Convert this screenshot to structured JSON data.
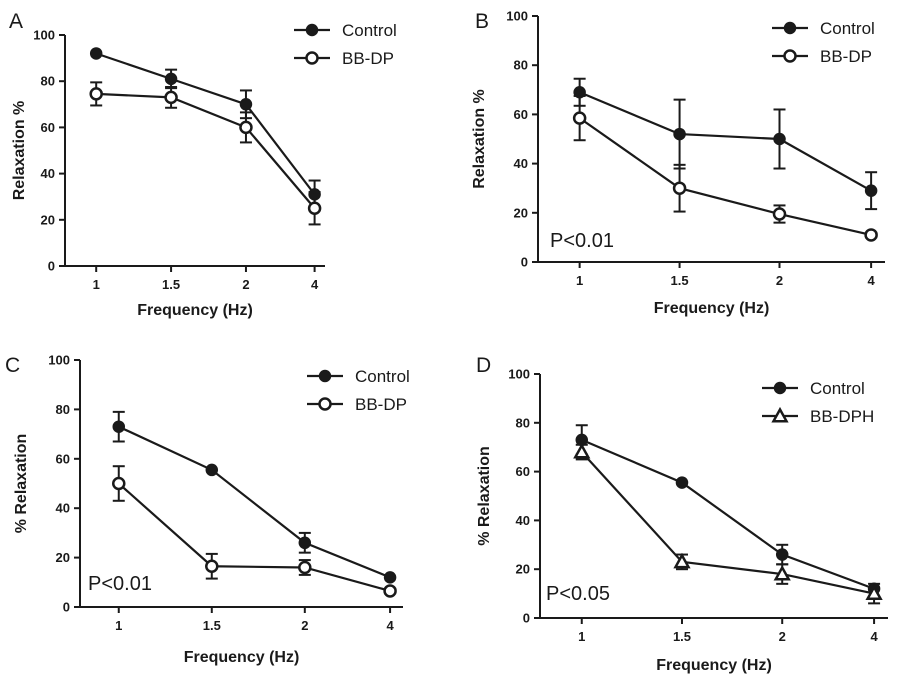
{
  "chart_data": [
    {
      "type": "line",
      "panel_label": "A",
      "categories": [
        "1",
        "1.5",
        "2",
        "4"
      ],
      "xlabel": "Frequency (Hz)",
      "ylabel": "Relaxation %",
      "ylim": [
        0,
        100
      ],
      "yticks": [
        "0",
        "20",
        "40",
        "60",
        "80",
        "100"
      ],
      "annotation": "",
      "legend_position": "top-right",
      "series": [
        {
          "name": "Control",
          "marker": "filled-circle",
          "values": [
            92,
            81,
            70,
            31
          ],
          "errors": [
            0,
            4,
            6,
            6
          ]
        },
        {
          "name": "BB-DP",
          "marker": "open-circle",
          "values": [
            74.5,
            73,
            60,
            25
          ],
          "errors": [
            5,
            4.5,
            6.5,
            7
          ]
        }
      ]
    },
    {
      "type": "line",
      "panel_label": "B",
      "categories": [
        "1",
        "1.5",
        "2",
        "4"
      ],
      "xlabel": "Frequency (Hz)",
      "ylabel": "Relaxation %",
      "ylim": [
        0,
        100
      ],
      "yticks": [
        "0",
        "20",
        "40",
        "60",
        "80",
        "100"
      ],
      "annotation": "P<0.01",
      "legend_position": "top-right",
      "series": [
        {
          "name": "Control",
          "marker": "filled-circle",
          "values": [
            69,
            52,
            50,
            29
          ],
          "errors": [
            5.5,
            14,
            12,
            7.5
          ]
        },
        {
          "name": "BB-DP",
          "marker": "open-circle",
          "values": [
            58.5,
            30,
            19.5,
            11
          ],
          "errors": [
            9,
            9.5,
            3.5,
            1
          ]
        }
      ]
    },
    {
      "type": "line",
      "panel_label": "C",
      "categories": [
        "1",
        "1.5",
        "2",
        "4"
      ],
      "xlabel": "Frequency (Hz)",
      "ylabel": "% Relaxation",
      "ylim": [
        0,
        100
      ],
      "yticks": [
        "0",
        "20",
        "40",
        "60",
        "80",
        "100"
      ],
      "annotation": "P<0.01",
      "legend_position": "top-right",
      "series": [
        {
          "name": "Control",
          "marker": "filled-circle",
          "values": [
            73,
            55.5,
            26,
            12
          ],
          "errors": [
            6,
            0,
            4,
            0
          ]
        },
        {
          "name": "BB-DP",
          "marker": "open-circle",
          "values": [
            50,
            16.5,
            16,
            6.5
          ],
          "errors": [
            7,
            5,
            3,
            1
          ]
        }
      ]
    },
    {
      "type": "line",
      "panel_label": "D",
      "categories": [
        "1",
        "1.5",
        "2",
        "4"
      ],
      "xlabel": "Frequency (Hz)",
      "ylabel": "% Relaxation",
      "ylim": [
        0,
        100
      ],
      "yticks": [
        "0",
        "20",
        "40",
        "60",
        "80",
        "100"
      ],
      "annotation": "P<0.05",
      "legend_position": "top-right",
      "series": [
        {
          "name": "Control",
          "marker": "filled-circle",
          "values": [
            73,
            55.5,
            26,
            12
          ],
          "errors": [
            6,
            0,
            4,
            0
          ]
        },
        {
          "name": "BB-DPH",
          "marker": "open-triangle",
          "values": [
            68,
            23,
            18,
            10
          ],
          "errors": [
            3,
            3,
            4,
            4
          ]
        }
      ]
    }
  ]
}
